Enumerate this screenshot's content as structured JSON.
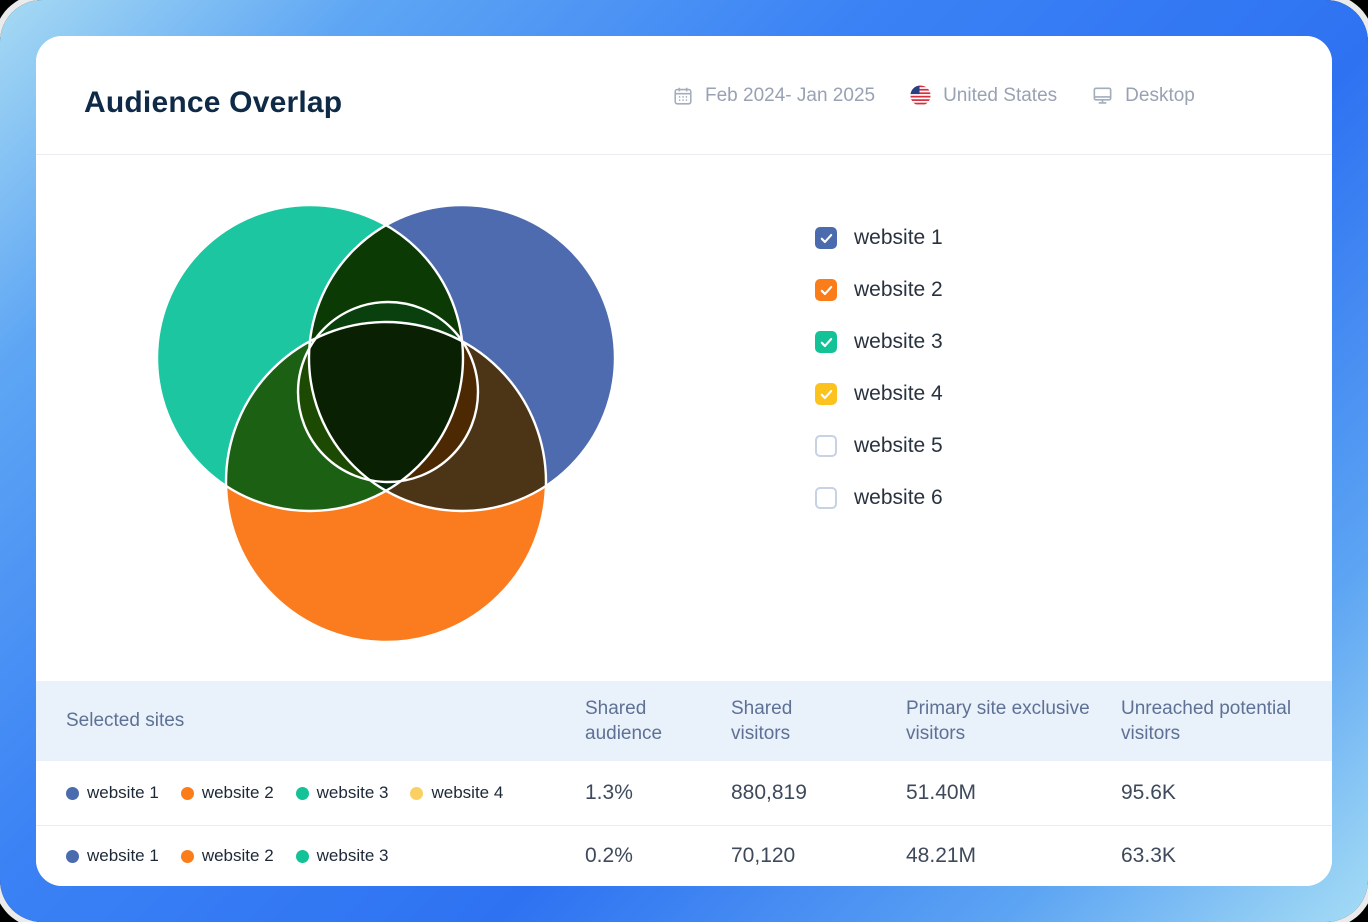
{
  "header": {
    "title": "Audience Overlap",
    "date_range": "Feb 2024- Jan 2025",
    "country": "United States",
    "device": "Desktop"
  },
  "legend": [
    {
      "label": "website 1",
      "color": "#4A6BAD",
      "checked": true
    },
    {
      "label": "website 2",
      "color": "#FA7D1A",
      "checked": true
    },
    {
      "label": "website 3",
      "color": "#13C296",
      "checked": true
    },
    {
      "label": "website 4",
      "color": "#FCC21D",
      "checked": true
    },
    {
      "label": "website 5",
      "color": null,
      "checked": false
    },
    {
      "label": "website 6",
      "color": null,
      "checked": false
    }
  ],
  "chart_data": {
    "type": "venn",
    "title": "Audience Overlap",
    "blend": "multiply",
    "outline_color": "#FFFFFF",
    "sets": [
      {
        "name": "website 1",
        "color": "#4D6BAE",
        "position": "top-right"
      },
      {
        "name": "website 2",
        "color": "#FB7C1F",
        "position": "bottom"
      },
      {
        "name": "website 3",
        "color": "#1CC6A1",
        "position": "top-left"
      },
      {
        "name": "website 4",
        "color": "#FDC520",
        "position": "center"
      }
    ],
    "overlap_overrides": [
      {
        "sets": [
          "website 3",
          "website 1"
        ],
        "color": "#0B3A04"
      }
    ],
    "overlap_rows": [
      {
        "sites": [
          "website 1",
          "website 2",
          "website 3",
          "website 4"
        ],
        "shared_audience": "1.3%",
        "shared_visitors": "880,819",
        "primary_site_exclusive_visitors": "51.40M",
        "unreached_potential_visitors": "95.6K"
      },
      {
        "sites": [
          "website 1",
          "website 2",
          "website 3"
        ],
        "shared_audience": "0.2%",
        "shared_visitors": "70,120",
        "primary_site_exclusive_visitors": "48.21M",
        "unreached_potential_visitors": "63.3K"
      }
    ]
  },
  "table": {
    "columns": [
      "Selected sites",
      "Shared audience",
      "Shared visitors",
      "Primary site exclusive visitors",
      "Unreached potential visitors"
    ],
    "rows": [
      {
        "sites": [
          {
            "label": "website 1",
            "color": "#4A6BAD"
          },
          {
            "label": "website 2",
            "color": "#FA7D1A"
          },
          {
            "label": "website 3",
            "color": "#13C296"
          },
          {
            "label": "website 4",
            "color": "#FBD063"
          }
        ],
        "shared_audience": "1.3%",
        "shared_visitors": "880,819",
        "primary_site_exclusive_visitors": "51.40M",
        "unreached_potential_visitors": "95.6K"
      },
      {
        "sites": [
          {
            "label": "website 1",
            "color": "#4A6BAD"
          },
          {
            "label": "website 2",
            "color": "#FA7D1A"
          },
          {
            "label": "website 3",
            "color": "#13C296"
          }
        ],
        "shared_audience": "0.2%",
        "shared_visitors": "70,120",
        "primary_site_exclusive_visitors": "48.21M",
        "unreached_potential_visitors": "63.3K"
      }
    ]
  }
}
